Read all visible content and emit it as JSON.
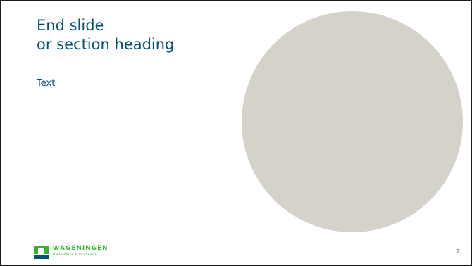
{
  "slide": {
    "heading_line1": "End slide",
    "heading_line2": "or section heading",
    "body_text": "Text",
    "page_number": "7"
  },
  "logo": {
    "name": "WAGENINGEN",
    "subtitle": "UNIVERSITY & RESEARCH"
  },
  "colors": {
    "text_blue": "#005172",
    "circle_fill": "#d5d2ca",
    "logo_green": "#34b233",
    "logo_blue": "#005172"
  }
}
